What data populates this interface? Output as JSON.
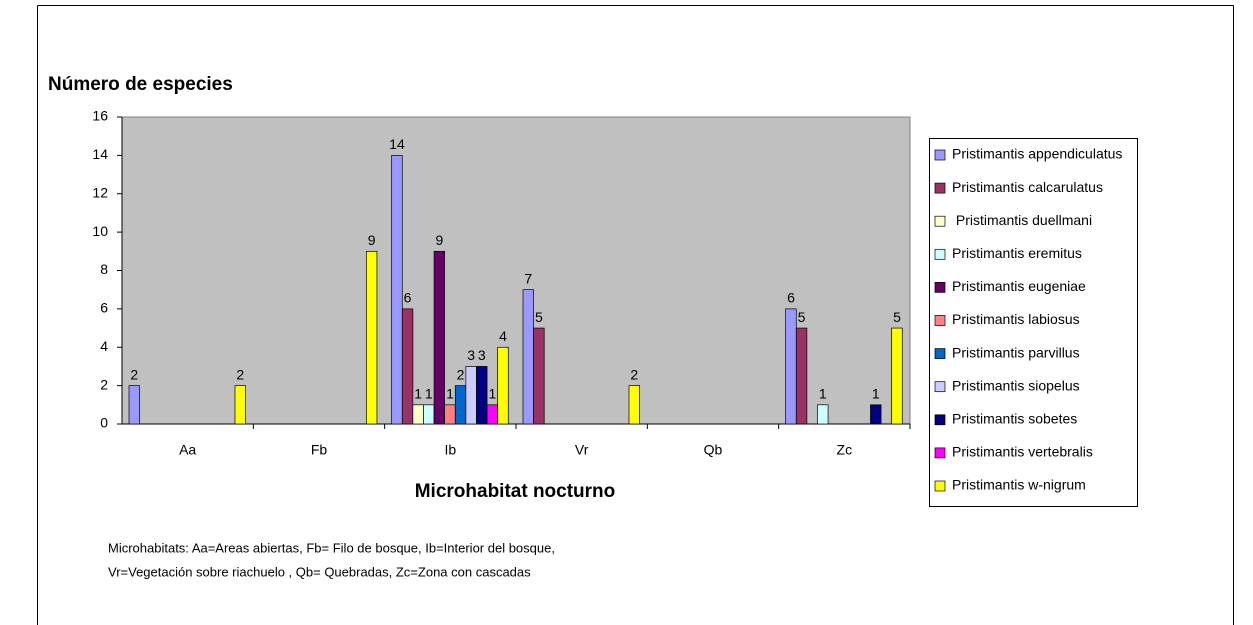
{
  "chart_data": {
    "type": "bar",
    "y_label": "Número de especies",
    "x_label": "Microhabitat nocturno",
    "notes": [
      "Microhabitats: Aa=Areas abiertas, Fb= Filo de bosque, Ib=Interior del bosque,",
      "Vr=Vegetación sobre riachuelo , Qb= Quebradas, Zc=Zona con cascadas"
    ],
    "categories": [
      "Aa",
      "Fb",
      "Ib",
      "Vr",
      "Qb",
      "Zc"
    ],
    "series": [
      {
        "name": "Pristimantis appendiculatus",
        "color": "#9999ff",
        "values": [
          2,
          0,
          14,
          7,
          0,
          6
        ]
      },
      {
        "name": "Pristimantis calcarulatus",
        "color": "#993366",
        "values": [
          0,
          0,
          6,
          5,
          0,
          5
        ]
      },
      {
        "name": " Pristimantis duellmani",
        "color": "#ffffcc",
        "values": [
          0,
          0,
          1,
          0,
          0,
          0
        ]
      },
      {
        "name": "Pristimantis eremitus",
        "color": "#ccffff",
        "values": [
          0,
          0,
          1,
          0,
          0,
          1
        ]
      },
      {
        "name": "Pristimantis eugeniae",
        "color": "#660066",
        "values": [
          0,
          0,
          9,
          0,
          0,
          0
        ]
      },
      {
        "name": "Pristimantis labiosus",
        "color": "#ff8080",
        "values": [
          0,
          0,
          1,
          0,
          0,
          0
        ]
      },
      {
        "name": "Pristimantis parvillus",
        "color": "#0066cc",
        "values": [
          0,
          0,
          2,
          0,
          0,
          0
        ]
      },
      {
        "name": "Pristimantis siopelus",
        "color": "#ccccff",
        "values": [
          0,
          0,
          3,
          0,
          0,
          0
        ]
      },
      {
        "name": "Pristimantis sobetes",
        "color": "#000080",
        "values": [
          0,
          0,
          3,
          0,
          0,
          1
        ]
      },
      {
        "name": "Pristimantis vertebralis",
        "color": "#ff00ff",
        "values": [
          0,
          0,
          1,
          0,
          0,
          0
        ]
      },
      {
        "name": "Pristimantis w-nigrum",
        "color": "#ffff00",
        "values": [
          2,
          9,
          4,
          2,
          0,
          5
        ]
      }
    ],
    "ylim": [
      0,
      16
    ],
    "yticks": [
      0,
      2,
      4,
      6,
      8,
      10,
      12,
      14,
      16
    ],
    "grid": false,
    "plot_background": "#c0c0c0",
    "legend": "right"
  }
}
